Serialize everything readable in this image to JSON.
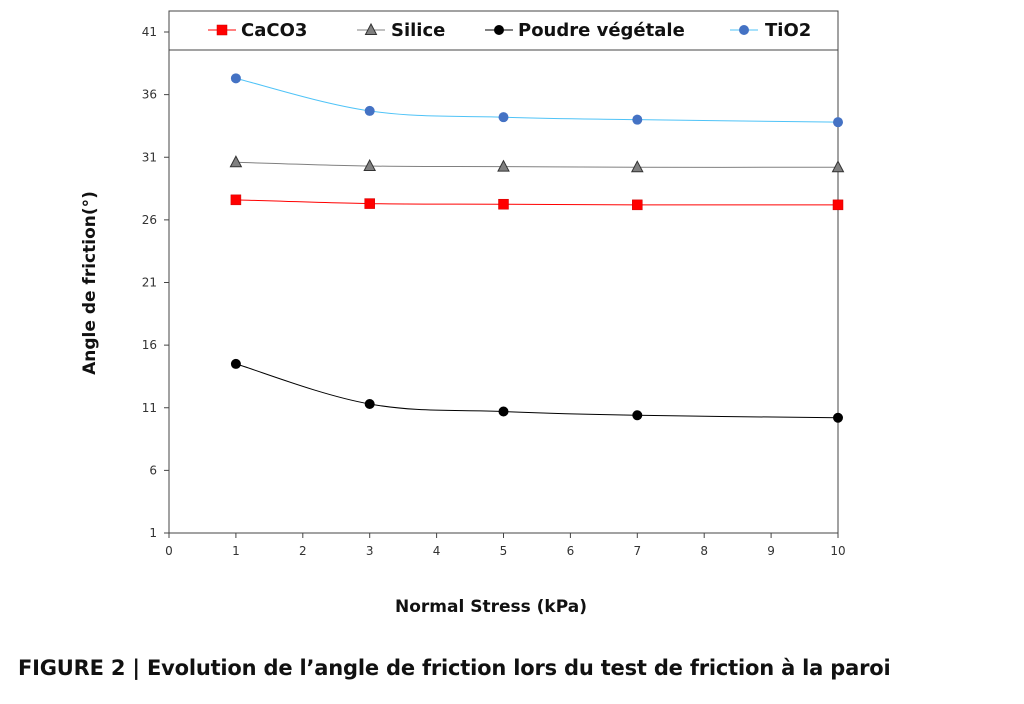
{
  "chart_data": {
    "type": "line",
    "x": [
      1,
      3,
      5,
      7,
      10
    ],
    "xlim": [
      0,
      10
    ],
    "ylim": [
      1,
      41
    ],
    "xticks": [
      "0",
      "1",
      "2",
      "3",
      "4",
      "5",
      "6",
      "7",
      "8",
      "9",
      "10"
    ],
    "yticks": [
      "1",
      "6",
      "11",
      "16",
      "21",
      "26",
      "31",
      "36",
      "41"
    ],
    "xlabel": "Normal Stress (kPa)",
    "ylabel": "Angle de friction(°)",
    "legend_position": "top",
    "grid": false,
    "series": [
      {
        "name": "CaCO3",
        "values": [
          27.6,
          27.3,
          27.25,
          27.2,
          27.2
        ],
        "color": "#ff0000",
        "marker": "square"
      },
      {
        "name": "Silice",
        "values": [
          30.6,
          30.3,
          30.25,
          30.2,
          30.2
        ],
        "color": "#808080",
        "marker": "triangle"
      },
      {
        "name": "Poudre végétale",
        "values": [
          14.5,
          11.3,
          10.7,
          10.4,
          10.2
        ],
        "color": "#000000",
        "marker": "circle"
      },
      {
        "name": "TiO2",
        "values": [
          37.3,
          34.7,
          34.2,
          34.0,
          33.8
        ],
        "color": "#4472c4",
        "line_color": "#4fc3f7",
        "marker": "circle"
      }
    ]
  },
  "caption": "FIGURE 2 | Evolution de l’angle de friction lors du test de friction à la paroi"
}
